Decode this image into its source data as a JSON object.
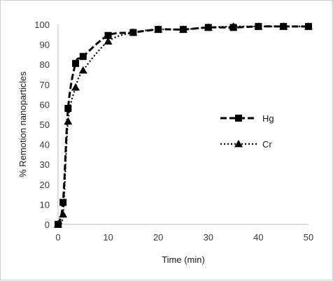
{
  "chart_data": {
    "type": "line",
    "title": "",
    "xlabel": "Time (min)",
    "ylabel": "% Remotion nanoparticles",
    "xlim": [
      0,
      50
    ],
    "ylim": [
      0,
      100
    ],
    "x_ticks": [
      0,
      10,
      20,
      30,
      40,
      50
    ],
    "y_ticks": [
      0,
      10,
      20,
      30,
      40,
      50,
      60,
      70,
      80,
      90,
      100
    ],
    "grid": false,
    "legend_position": "right",
    "series": [
      {
        "name": "Hg",
        "line_style": "dashed",
        "marker": "square",
        "color": "#000000",
        "x": [
          0,
          1,
          2,
          3.5,
          5,
          10,
          15,
          20,
          25,
          30,
          35,
          40,
          45,
          50
        ],
        "y": [
          0,
          11,
          58,
          80.5,
          84,
          94.5,
          96,
          97.5,
          97.5,
          98.5,
          98.5,
          99,
          99,
          99
        ]
      },
      {
        "name": "Cr",
        "line_style": "dotted",
        "marker": "triangle",
        "color": "#000000",
        "x": [
          0,
          1,
          2,
          3.5,
          5,
          10,
          15,
          20,
          25,
          30,
          35,
          40,
          45,
          50
        ],
        "y": [
          0,
          5,
          51.5,
          68.5,
          77,
          91.5,
          96,
          97.5,
          97.5,
          98.5,
          99,
          99,
          99,
          99
        ]
      }
    ]
  }
}
